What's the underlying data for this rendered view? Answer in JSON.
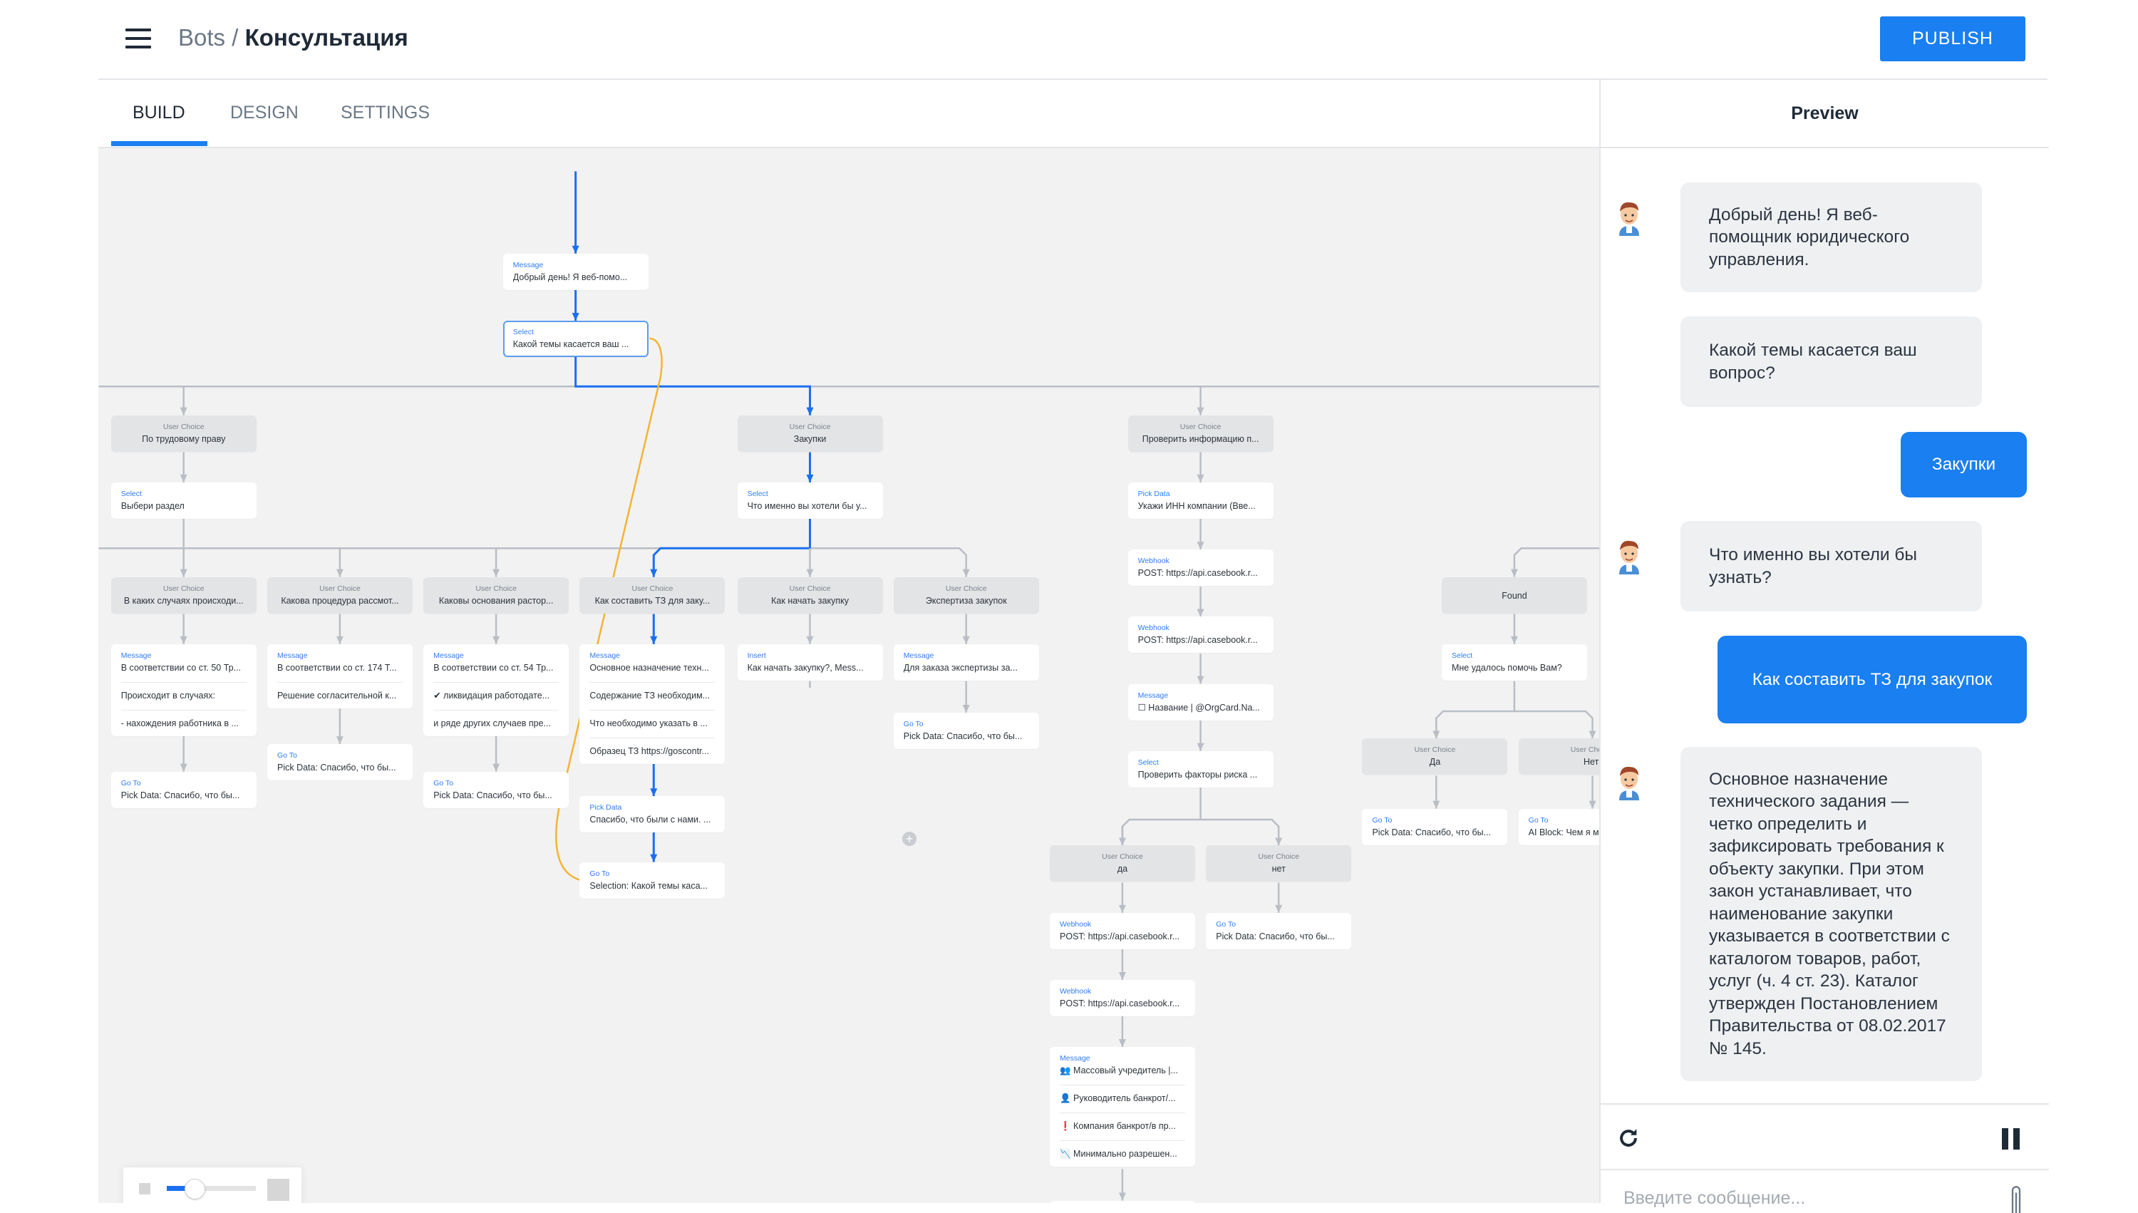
{
  "header": {
    "menu_icon": "hamburger-icon",
    "breadcrumb_root": "Bots",
    "breadcrumb_separator": "/",
    "breadcrumb_current": "Консультация",
    "publish_label": "PUBLISH"
  },
  "tabs": [
    {
      "label": "BUILD",
      "active": true
    },
    {
      "label": "DESIGN",
      "active": false
    },
    {
      "label": "SETTINGS",
      "active": false
    }
  ],
  "colors": {
    "accent": "#1a7ff0",
    "curve": "#f5b335",
    "canvas": "#f2f2f2",
    "user_choice_bg": "#e3e4e6"
  },
  "flow": {
    "nodes": [
      {
        "type": "Message",
        "lines": [
          "Добрый день! Я веб-помо..."
        ]
      },
      {
        "type": "Select",
        "lines": [
          "Какой темы касается ваш ..."
        ],
        "selected": true
      },
      {
        "type": "User Choice",
        "lines": [
          "По трудовому праву"
        ]
      },
      {
        "type": "User Choice",
        "lines": [
          "Закупки"
        ]
      },
      {
        "type": "User Choice",
        "lines": [
          "Проверить информацию п..."
        ]
      },
      {
        "type": "Select",
        "lines": [
          "Выбери раздел"
        ]
      },
      {
        "type": "Select",
        "lines": [
          "Что именно вы хотели бы у..."
        ]
      },
      {
        "type": "Pick Data",
        "lines": [
          "Укажи ИНН компании (Вве..."
        ]
      },
      {
        "type": "User Choice",
        "lines": [
          "В каких случаях происходи..."
        ]
      },
      {
        "type": "User Choice",
        "lines": [
          "Какова процедура рассмот..."
        ]
      },
      {
        "type": "User Choice",
        "lines": [
          "Каковы основания растор..."
        ]
      },
      {
        "type": "User Choice",
        "lines": [
          "Как составить ТЗ для заку..."
        ]
      },
      {
        "type": "User Choice",
        "lines": [
          "Как начать закупку"
        ]
      },
      {
        "type": "User Choice",
        "lines": [
          "Экспертиза закупок"
        ]
      },
      {
        "type": "Webhook",
        "lines": [
          "POST: https://api.casebook.r..."
        ]
      },
      {
        "type": "",
        "lines": [
          "Found"
        ]
      },
      {
        "type": "Message",
        "lines": [
          "В соответствии со ст. 50 Тр...",
          "Происходит в случаях:",
          "- нахождения работника в ..."
        ]
      },
      {
        "type": "Message",
        "lines": [
          "В соответствии со ст. 174 Т...",
          "Решение согласительной к..."
        ]
      },
      {
        "type": "Message",
        "lines": [
          "В соответствии со ст. 54 Тр...",
          "✔ ликвидация работодате...",
          "и ряде других случаев пре..."
        ]
      },
      {
        "type": "Message",
        "lines": [
          "Основное назначение техн...",
          "Содержание ТЗ необходим...",
          "Что необходимо указать в ...",
          "Образец ТЗ https://goscontr..."
        ]
      },
      {
        "type": "Insert",
        "lines": [
          "Как начать закупку?, Mess..."
        ]
      },
      {
        "type": "Message",
        "lines": [
          "Для заказа экспертизы за..."
        ]
      },
      {
        "type": "Webhook",
        "lines": [
          "POST: https://api.casebook.r..."
        ]
      },
      {
        "type": "Select",
        "lines": [
          "Мне удалось помочь Вам?"
        ]
      },
      {
        "type": "Go To",
        "lines": [
          "Pick Data: Спасибо, что бы..."
        ]
      },
      {
        "type": "Go To",
        "lines": [
          "Pick Data: Спасибо, что бы..."
        ]
      },
      {
        "type": "Go To",
        "lines": [
          "Pick Data: Спасибо, что бы..."
        ]
      },
      {
        "type": "Go To",
        "lines": [
          "Pick Data: Спасибо, что бы..."
        ]
      },
      {
        "type": "Pick Data",
        "lines": [
          "Спасибо, что были с нами. ..."
        ]
      },
      {
        "type": "Go To",
        "lines": [
          "Selection: Какой темы каса..."
        ]
      },
      {
        "type": "Message",
        "lines": [
          "☐ Название | @OrgCard.Na..."
        ]
      },
      {
        "type": "Select",
        "lines": [
          "Проверить факторы риска ..."
        ]
      },
      {
        "type": "User Choice",
        "lines": [
          "да"
        ]
      },
      {
        "type": "User Choice",
        "lines": [
          "нет"
        ]
      },
      {
        "type": "User Choice",
        "lines": [
          "Да"
        ]
      },
      {
        "type": "User Choice",
        "lines": [
          "Нет"
        ]
      },
      {
        "type": "Go To",
        "lines": [
          "Pick Data: Спасибо, что бы..."
        ]
      },
      {
        "type": "Go To",
        "lines": [
          "AI Block: Чем я м..."
        ]
      },
      {
        "type": "Webhook",
        "lines": [
          "POST: https://api.casebook.r..."
        ]
      },
      {
        "type": "Go To",
        "lines": [
          "Pick Data: Спасибо, что бы..."
        ]
      },
      {
        "type": "Webhook",
        "lines": [
          "POST: https://api.casebook.r..."
        ]
      },
      {
        "type": "Message",
        "lines": [
          "👥 Массовый учредитель |...",
          "👤 Руководитель банкрот/...",
          "❗ Компания банкрот/в пр...",
          "📉 Минимально разрешен..."
        ]
      },
      {
        "type": "",
        "lines": [
          ""
        ]
      }
    ],
    "add_icon": "plus-circle-icon",
    "zoom_slider": {
      "value_percent": 22
    }
  },
  "preview": {
    "title": "Preview",
    "messages": [
      {
        "from": "bot",
        "text": "Добрый день! Я веб-помощник юридического управления.",
        "avatar": true
      },
      {
        "from": "bot",
        "text": "Какой темы касается ваш вопрос?",
        "avatar": false
      },
      {
        "from": "user",
        "text": "Закупки"
      },
      {
        "from": "bot",
        "text": "Что именно вы хотели бы узнать?",
        "avatar": true
      },
      {
        "from": "user",
        "text": "Как составить ТЗ для закупок"
      },
      {
        "from": "bot",
        "text": "Основное назначение технического задания — четко определить и зафиксировать требования к объекту закупки. При этом закон устанавливает, что наименование закупки указывается в соответствии с каталогом товаров, работ, услуг (ч. 4 ст. 23). Каталог утвержден Постановлением Правительства от 08.02.2017 № 145.",
        "avatar": true
      }
    ],
    "input_placeholder": "Введите сообщение...",
    "restart_icon": "refresh-icon",
    "pause_icon": "pause-icon",
    "attach_icon": "paperclip-icon"
  }
}
